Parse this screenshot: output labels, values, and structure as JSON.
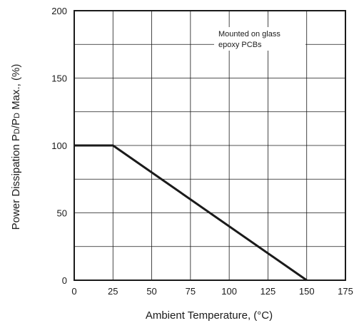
{
  "chart_data": {
    "type": "line",
    "title": "",
    "xlabel": "Ambient Temperature, (°C)",
    "ylabel": "Power Dissipation PD/PD Max., (%)",
    "ylabel_parts": {
      "prefix": "Power Dissipation P",
      "sub1": "D",
      "mid": "/P",
      "sub2": "D",
      "suffix": " Max., (%)"
    },
    "xlim": [
      0,
      175
    ],
    "ylim": [
      0,
      200
    ],
    "x_ticks": [
      0,
      25,
      50,
      75,
      100,
      125,
      150,
      175
    ],
    "y_ticks": [
      0,
      50,
      100,
      150,
      200
    ],
    "x_tick_labels": [
      "0",
      "25",
      "50",
      "75",
      "100",
      "125",
      "150",
      "175"
    ],
    "y_tick_labels": [
      "0",
      "50",
      "100",
      "150",
      "200"
    ],
    "grid": true,
    "series": [
      {
        "x": [
          0,
          25,
          150
        ],
        "y": [
          100,
          100,
          0
        ]
      }
    ],
    "annotation": {
      "lines": [
        "Mounted on glass",
        "epoxy PCBs"
      ]
    },
    "colors": {
      "line": "#1a1a1a",
      "grid": "#1a1a1a",
      "background": "#ffffff"
    }
  }
}
